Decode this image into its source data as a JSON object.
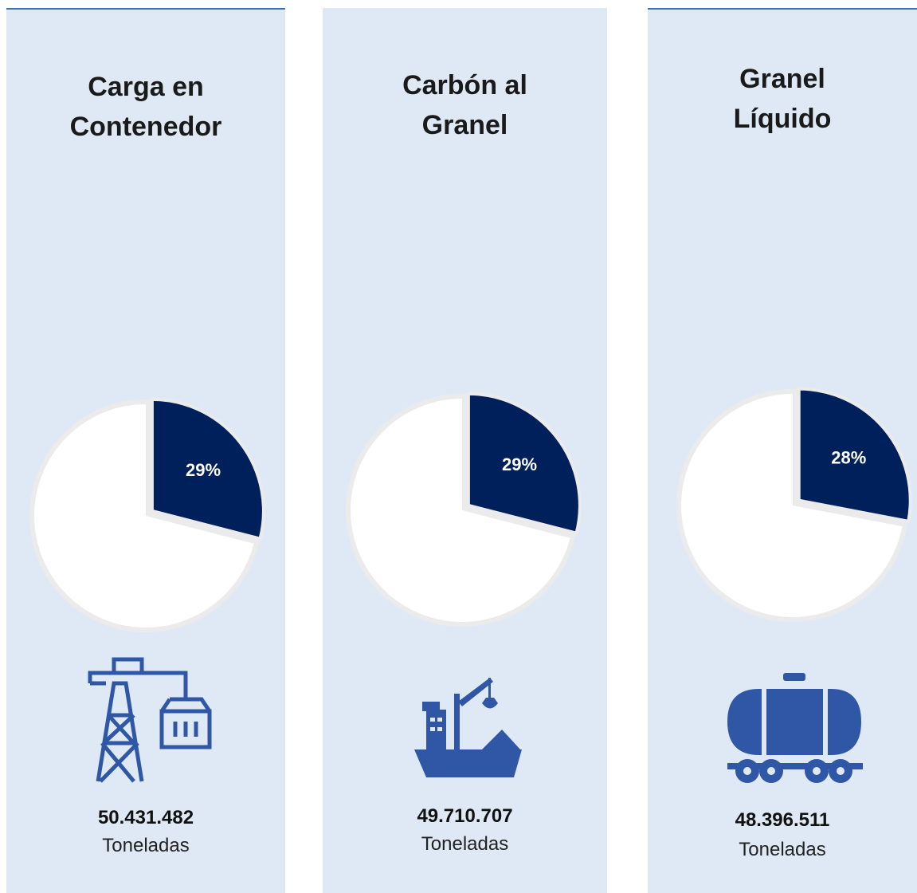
{
  "chart_data": [
    {
      "type": "pie",
      "title": "Carga en Contenedor",
      "values": [
        29,
        71
      ],
      "value_labels": [
        "29%",
        null
      ],
      "colors": [
        "#00205b",
        "#ffffff"
      ],
      "amount": "50.431.482",
      "unit": "Toneladas"
    },
    {
      "type": "pie",
      "title": "Carbón al Granel",
      "values": [
        29,
        71
      ],
      "value_labels": [
        "29%",
        null
      ],
      "colors": [
        "#00205b",
        "#ffffff"
      ],
      "amount": "49.710.707",
      "unit": "Toneladas"
    },
    {
      "type": "pie",
      "title": "Granel Líquido",
      "values": [
        28,
        72
      ],
      "value_labels": [
        "28%",
        null
      ],
      "colors": [
        "#00205b",
        "#ffffff"
      ],
      "amount": "48.396.511",
      "unit": "Toneladas"
    }
  ]
}
